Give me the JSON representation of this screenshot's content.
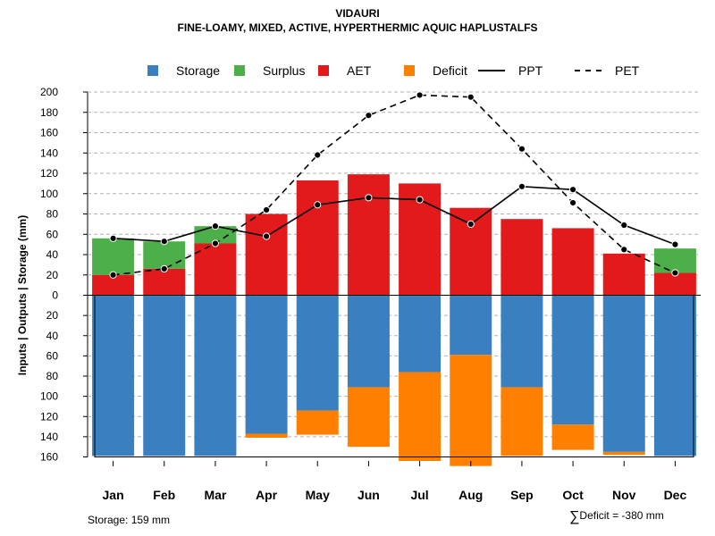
{
  "chart_data": {
    "type": "bar",
    "title": "VIDAURI",
    "subtitle": "FINE-LOAMY, MIXED, ACTIVE, HYPERTHERMIC AQUIC HAPLUSTALFS",
    "ylabel": "Inputs | Outputs | Storage     (mm)",
    "categories": [
      "Jan",
      "Feb",
      "Mar",
      "Apr",
      "May",
      "Jun",
      "Jul",
      "Aug",
      "Sep",
      "Oct",
      "Nov",
      "Dec"
    ],
    "upper_ylim": [
      0,
      200
    ],
    "upper_ticks": [
      0,
      20,
      40,
      60,
      80,
      100,
      120,
      140,
      160,
      180,
      200
    ],
    "lower_ylim": [
      0,
      160
    ],
    "lower_ticks": [
      20,
      40,
      60,
      80,
      100,
      120,
      140,
      160
    ],
    "grid": true,
    "legend_position": "top",
    "legend": [
      {
        "name": "Storage",
        "kind": "box",
        "color": "#3a7fbf"
      },
      {
        "name": "Surplus",
        "kind": "box",
        "color": "#4daf4a"
      },
      {
        "name": "AET",
        "kind": "box",
        "color": "#e31a1c"
      },
      {
        "name": "Deficit",
        "kind": "box",
        "color": "#ff7f00"
      },
      {
        "name": "PPT",
        "kind": "solid"
      },
      {
        "name": "PET",
        "kind": "dashed"
      }
    ],
    "colors": {
      "storage": "#3a7fbf",
      "surplus": "#4daf4a",
      "aet": "#e31a1c",
      "deficit": "#ff7f00",
      "line": "#000000",
      "grid": "#b0b0b0"
    },
    "series": [
      {
        "name": "AET",
        "values": [
          20,
          26,
          51,
          80,
          113,
          119,
          110,
          86,
          75,
          66,
          41,
          22
        ]
      },
      {
        "name": "Surplus",
        "values": [
          36,
          27,
          17,
          0,
          0,
          0,
          0,
          0,
          0,
          0,
          0,
          24
        ]
      },
      {
        "name": "Storage",
        "values": [
          159,
          159,
          159,
          137,
          114,
          91,
          76,
          59,
          91,
          128,
          155,
          159
        ]
      },
      {
        "name": "Deficit",
        "values": [
          0,
          0,
          0,
          4,
          24,
          59,
          88,
          110,
          68,
          25,
          3,
          0
        ]
      },
      {
        "name": "PPT",
        "values": [
          56,
          53,
          68,
          58,
          89,
          96,
          94,
          70,
          107,
          104,
          69,
          50
        ]
      },
      {
        "name": "PET",
        "values": [
          20,
          26,
          51,
          84,
          138,
          177,
          197,
          195,
          144,
          91,
          45,
          22
        ]
      }
    ],
    "annotations": {
      "storage_note": "Storage: 159 mm",
      "deficit_sigma": "∑",
      "deficit_note": "Deficit = -380 mm"
    }
  }
}
